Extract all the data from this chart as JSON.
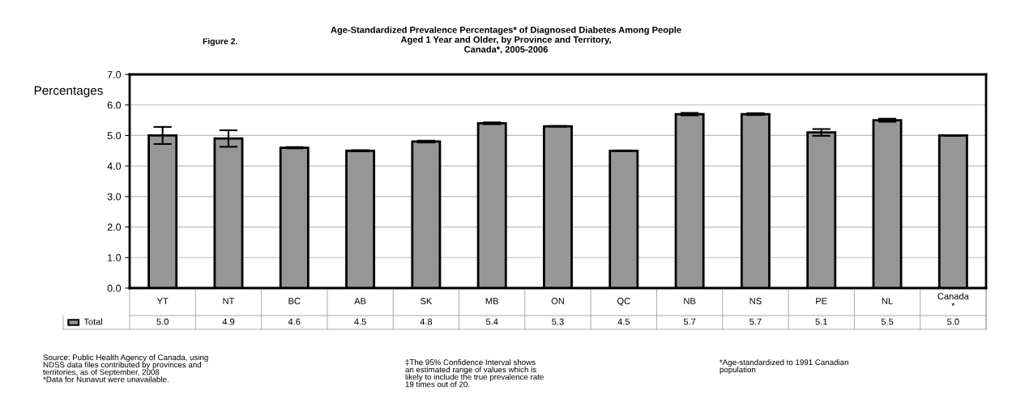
{
  "chart_data": {
    "type": "bar",
    "title": "Age-Standardized Prevalence Percentages* of Diagnosed Diabetes Among People\nAged 1 Year and Older, by Province and Territory,\nCanada*, 2005-2006",
    "ylabel": "Percentages",
    "categories": [
      "YT",
      "NT",
      "BC",
      "AB",
      "SK",
      "MB",
      "ON",
      "QC",
      "NB",
      "NS",
      "PE",
      "NL",
      "Canada\n*"
    ],
    "series": [
      {
        "name": "Total",
        "color": "#969696",
        "values": [
          5.0,
          4.9,
          4.6,
          4.5,
          4.8,
          5.4,
          5.3,
          4.5,
          5.7,
          5.7,
          5.1,
          5.5,
          5.0
        ],
        "errors": [
          0.28,
          0.27,
          0.02,
          0.02,
          0.03,
          0.03,
          0.01,
          0.01,
          0.04,
          0.03,
          0.11,
          0.05,
          0.01
        ],
        "value_labels": [
          "5.0",
          "4.9",
          "4.6",
          "4.5",
          "4.8",
          "5.4",
          "5.3",
          "4.5",
          "5.7",
          "5.7",
          "5.1",
          "5.5",
          "5.0"
        ]
      }
    ],
    "ylim": [
      0,
      7
    ],
    "yticks": [
      {
        "value": 0,
        "label": "0.0"
      },
      {
        "value": 1,
        "label": "1.0"
      },
      {
        "value": 2,
        "label": "2.0"
      },
      {
        "value": 3,
        "label": "3.0"
      },
      {
        "value": 4,
        "label": "4.0"
      },
      {
        "value": 5,
        "label": "5.0"
      },
      {
        "value": 6,
        "label": "6.0"
      },
      {
        "value": 7,
        "label": "7.0"
      }
    ],
    "grid": "y",
    "annotations": [
      "Figure 2.",
      "Source: Public Health Agency of Canada, using\nNDSS data files contributed by provinces and\nterritories, as of September, 2008\n*Data for Nunavut were unavailable.",
      "‡The 95% Confidence Interval shows\nan estimated range of values which is\nlikely to include the true prevalence rate\n19 times out of 20.",
      "*Age-standardized to 1991 Canadian\npopulation"
    ]
  }
}
